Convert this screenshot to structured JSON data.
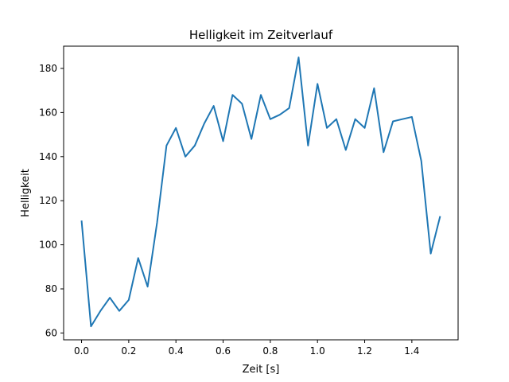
{
  "chart_data": {
    "type": "line",
    "title": "Helligkeit im Zeitverlauf",
    "xlabel": "Zeit [s]",
    "ylabel": "Helligkeit",
    "xlim": [
      -0.076,
      1.596
    ],
    "ylim": [
      56.9,
      190.1
    ],
    "xticks": [
      0.0,
      0.2,
      0.4,
      0.6,
      0.8,
      1.0,
      1.2,
      1.4
    ],
    "xtick_labels": [
      "0.0",
      "0.2",
      "0.4",
      "0.6",
      "0.8",
      "1.0",
      "1.2",
      "1.4"
    ],
    "yticks": [
      60,
      80,
      100,
      120,
      140,
      160,
      180
    ],
    "ytick_labels": [
      "60",
      "80",
      "100",
      "120",
      "140",
      "160",
      "180"
    ],
    "grid": false,
    "legend": "none",
    "line_color": "#1f77b4",
    "series": [
      {
        "x": [
          0.0,
          0.04,
          0.08,
          0.12,
          0.16,
          0.2,
          0.24,
          0.28,
          0.32,
          0.36,
          0.4,
          0.44,
          0.48,
          0.52,
          0.56,
          0.6,
          0.64,
          0.68,
          0.72,
          0.76,
          0.8,
          0.84,
          0.88,
          0.92,
          0.96,
          1.0,
          1.04,
          1.08,
          1.12,
          1.16,
          1.2,
          1.24,
          1.28,
          1.32,
          1.36,
          1.4,
          1.44,
          1.48,
          1.52
        ],
        "y": [
          111,
          63,
          70,
          76,
          70,
          75,
          94,
          81,
          110,
          145,
          153,
          140,
          145,
          155,
          163,
          147,
          168,
          164,
          148,
          168,
          157,
          159,
          162,
          185,
          145,
          173,
          153,
          157,
          143,
          157,
          153,
          171,
          142,
          156,
          157,
          158,
          138,
          96,
          113
        ]
      }
    ]
  }
}
